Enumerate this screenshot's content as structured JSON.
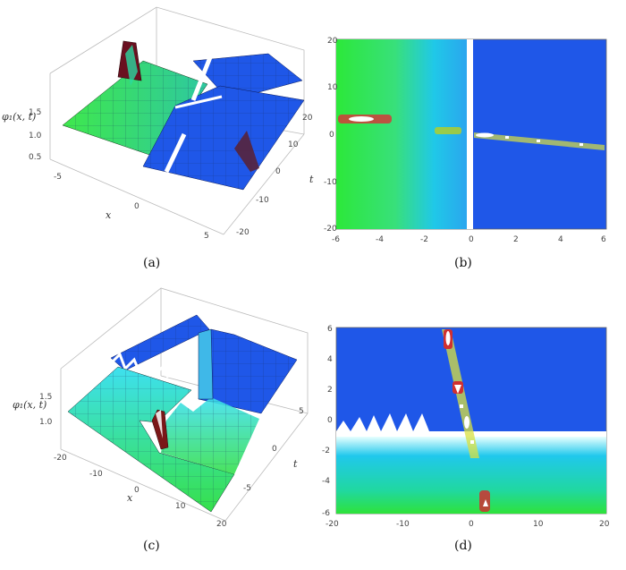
{
  "panels": [
    {
      "caption": "(a)",
      "zlabel": "φ₁(x, t)",
      "xlabel": "x",
      "tlabel": "t",
      "zticks": [
        "1.5",
        "1.0",
        "0.5"
      ],
      "xticks": [
        "-5",
        "0",
        "5"
      ],
      "tticks": [
        "20",
        "10",
        "0",
        "-10",
        "-20"
      ]
    },
    {
      "caption": "(b)",
      "xticks": [
        "-6",
        "-4",
        "-2",
        "0",
        "2",
        "4",
        "6"
      ],
      "yticks": [
        "20",
        "10",
        "0",
        "-10",
        "-20"
      ]
    },
    {
      "caption": "(c)",
      "zlabel": "φ₁(x, t)",
      "xlabel": "x",
      "tlabel": "t",
      "zticks": [
        "1.5",
        "1.0"
      ],
      "xticks": [
        "-20",
        "-10",
        "0",
        "10",
        "20"
      ],
      "tticks": [
        "5",
        "0",
        "-5"
      ]
    },
    {
      "caption": "(d)",
      "xticks": [
        "-20",
        "-10",
        "0",
        "10",
        "20"
      ],
      "yticks": [
        "6",
        "4",
        "2",
        "0",
        "-2",
        "-4",
        "-6"
      ]
    }
  ],
  "colors": {
    "blue": "#1f57e8",
    "green": "#34e33a",
    "cyan": "#27c8e8",
    "peak": "#8b1a1a"
  }
}
